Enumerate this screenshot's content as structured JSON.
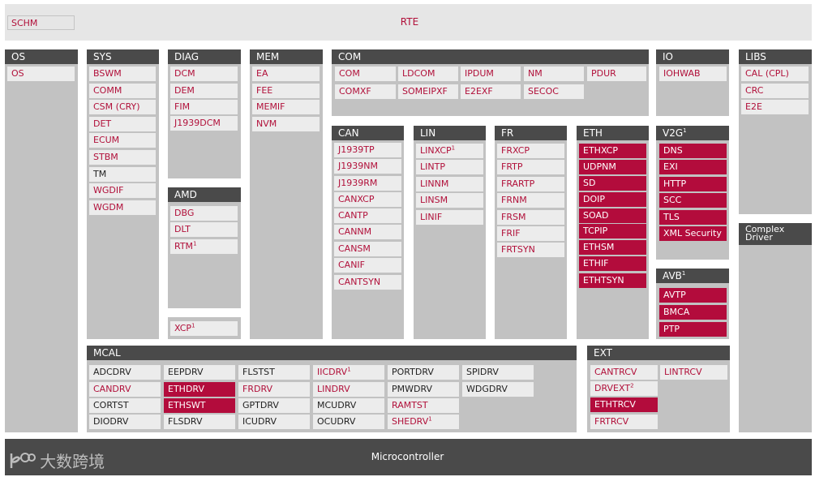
{
  "rte": {
    "schm": "SCHM",
    "title": "RTE"
  },
  "os": {
    "header": "OS",
    "modules": [
      "OS"
    ]
  },
  "sys": {
    "header": "SYS",
    "modules": [
      "BSWM",
      "COMM",
      "CSM (CRY)",
      "DET",
      "ECUM",
      "STBM",
      "TM",
      "WGDIF",
      "WGDM"
    ]
  },
  "diag": {
    "header": "DIAG",
    "modules": [
      "DCM",
      "DEM",
      "FIM",
      "J1939DCM"
    ]
  },
  "amd": {
    "header": "AMD",
    "modules": [
      "DBG",
      "DLT",
      "RTM"
    ],
    "footnote_modules": [
      "XCP"
    ]
  },
  "mem": {
    "header": "MEM",
    "modules": [
      "EA",
      "FEE",
      "MEMIF",
      "NVM"
    ]
  },
  "com": {
    "header": "COM",
    "modules": [
      "COM",
      "LDCOM",
      "IPDUM",
      "NM",
      "PDUR",
      "COMXF",
      "SOMEIPXF",
      "E2EXF",
      "SECOC"
    ]
  },
  "can": {
    "header": "CAN",
    "modules": [
      "J1939TP",
      "J1939NM",
      "J1939RM",
      "CANXCP",
      "CANTP",
      "CANNM",
      "CANSM",
      "CANIF",
      "CANTSYN"
    ]
  },
  "lin": {
    "header": "LIN",
    "modules": [
      "LINXCP",
      "LINTP",
      "LINNM",
      "LINSM",
      "LINIF"
    ]
  },
  "fr": {
    "header": "FR",
    "modules": [
      "FRXCP",
      "FRTP",
      "FRARTP",
      "FRNM",
      "FRSM",
      "FRIF",
      "FRTSYN"
    ]
  },
  "eth": {
    "header": "ETH",
    "modules": [
      "ETHXCP",
      "UDPNM",
      "SD",
      "DOIP",
      "SOAD",
      "TCPIP",
      "ETHSM",
      "ETHIF",
      "ETHTSYN"
    ]
  },
  "io": {
    "header": "IO",
    "modules": [
      "IOHWAB"
    ]
  },
  "v2g": {
    "header": "V2G",
    "modules": [
      "DNS",
      "EXI",
      "HTTP",
      "SCC",
      "TLS",
      "XML Security"
    ]
  },
  "avb": {
    "header": "AVB",
    "modules": [
      "AVTP",
      "BMCA",
      "PTP"
    ]
  },
  "libs": {
    "header": "LIBS",
    "modules": [
      "CAL (CPL)",
      "CRC",
      "E2E"
    ]
  },
  "complex": {
    "line1": "Complex",
    "line2": "Driver"
  },
  "mcal": {
    "header": "MCAL",
    "modules": [
      "ADCDRV",
      "CANDRV",
      "CORTST",
      "DIODRV",
      "EEPDRV",
      "ETHDRV",
      "ETHSWT",
      "FLSDRV",
      "FLSTST",
      "FRDRV",
      "GPTDRV",
      "ICUDRV",
      "IICDRV",
      "LINDRV",
      "MCUDRV",
      "OCUDRV",
      "PORTDRV",
      "PMWDRV",
      "RAMTST",
      "SHEDRV",
      "SPIDRV",
      "WDGDRV"
    ]
  },
  "ext": {
    "header": "EXT",
    "modules": [
      "CANTRCV",
      "DRVEXT",
      "ETHTRCV",
      "FRTRCV",
      "LINTRCV"
    ]
  },
  "footnotes": {
    "one": "1",
    "two": "2"
  },
  "microcontroller": {
    "label": "Microcontroller"
  },
  "watermark": {
    "text": "大数跨境"
  },
  "colors": {
    "accent": "#b30c3c",
    "header": "#4a4a4a",
    "panel": "#c2c2c2",
    "module": "#ececec",
    "text_red": "#b1103a"
  }
}
